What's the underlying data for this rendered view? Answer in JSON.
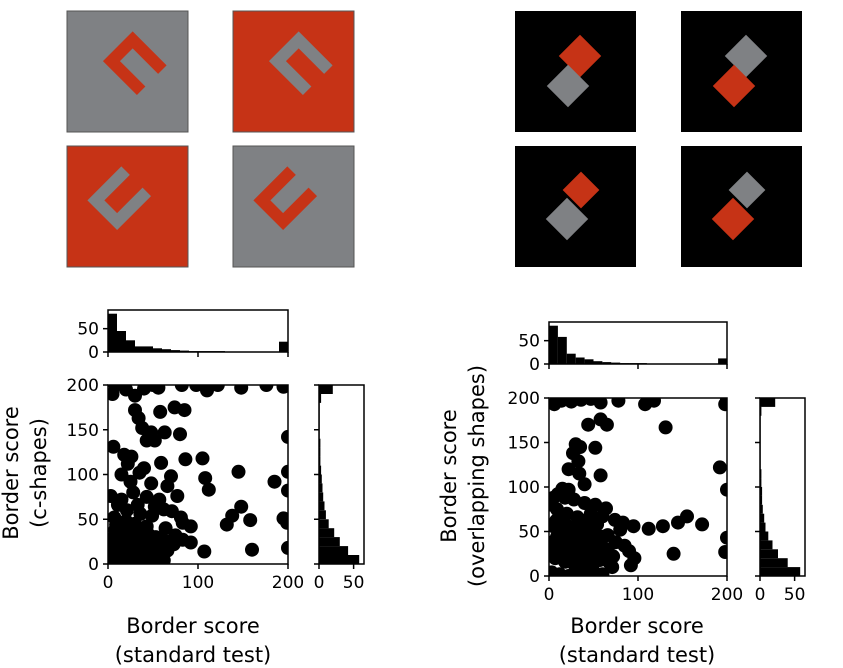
{
  "colors": {
    "red": "#c63316",
    "gray": "#7f8184",
    "black": "#000000",
    "white": "#ffffff"
  },
  "stimuli": {
    "c_shapes": [
      {
        "background": "gray",
        "shape": "red",
        "orientation": "facing-down"
      },
      {
        "background": "red",
        "shape": "gray",
        "orientation": "facing-down"
      },
      {
        "background": "red",
        "shape": "gray",
        "orientation": "facing-up"
      },
      {
        "background": "gray",
        "shape": "red",
        "orientation": "facing-up"
      }
    ],
    "overlapping_shapes": [
      {
        "background": "black",
        "front": "gray",
        "back": "red",
        "front_position": "lower-left"
      },
      {
        "background": "black",
        "front": "red",
        "back": "gray",
        "front_position": "lower-left"
      },
      {
        "background": "black",
        "front": "gray",
        "back": "red",
        "front_position": "lower-left"
      },
      {
        "background": "black",
        "front": "red",
        "back": "gray",
        "front_position": "lower-left"
      }
    ]
  },
  "chart_data": [
    {
      "type": "scatter",
      "title": "",
      "xlabel_line1": "Border score",
      "xlabel_line2": "(standard test)",
      "ylabel_line1": "Border score",
      "ylabel_line2": "(c-shapes)",
      "xlim": [
        0,
        200
      ],
      "ylim": [
        0,
        200
      ],
      "xticks": [
        "0",
        "100",
        "200"
      ],
      "yticks": [
        "0",
        "50",
        "100",
        "150",
        "200"
      ],
      "marginal_x": {
        "type": "bar",
        "yticks": [
          "0",
          "50"
        ],
        "ylim": [
          0,
          90
        ],
        "bin_width": 10,
        "counts": [
          82,
          45,
          25,
          12,
          12,
          8,
          6,
          4,
          3,
          2,
          2,
          2,
          2,
          1,
          1,
          1,
          1,
          1,
          0,
          22
        ]
      },
      "marginal_y": {
        "type": "bar",
        "xticks": [
          "0",
          "50"
        ],
        "xlim": [
          0,
          65
        ],
        "bin_width": 10,
        "counts": [
          58,
          42,
          30,
          22,
          14,
          10,
          8,
          6,
          5,
          4,
          3,
          2,
          2,
          2,
          1,
          1,
          1,
          1,
          3,
          20
        ]
      },
      "points": [
        [
          5,
          190
        ],
        [
          8,
          200
        ],
        [
          20,
          195
        ],
        [
          30,
          188
        ],
        [
          40,
          196
        ],
        [
          50,
          200
        ],
        [
          56,
          197
        ],
        [
          82,
          200
        ],
        [
          98,
          200
        ],
        [
          110,
          194
        ],
        [
          122,
          200
        ],
        [
          148,
          197
        ],
        [
          176,
          200
        ],
        [
          200,
          200
        ],
        [
          195,
          198
        ],
        [
          30,
          172
        ],
        [
          34,
          163
        ],
        [
          58,
          170
        ],
        [
          74,
          175
        ],
        [
          85,
          172
        ],
        [
          38,
          152
        ],
        [
          48,
          147
        ],
        [
          63,
          147
        ],
        [
          80,
          145
        ],
        [
          200,
          142
        ],
        [
          43,
          138
        ],
        [
          52,
          138
        ],
        [
          6,
          131
        ],
        [
          18,
          122
        ],
        [
          26,
          120
        ],
        [
          22,
          112
        ],
        [
          40,
          107
        ],
        [
          59,
          113
        ],
        [
          86,
          117
        ],
        [
          105,
          118
        ],
        [
          15,
          100
        ],
        [
          35,
          102
        ],
        [
          70,
          98
        ],
        [
          108,
          96
        ],
        [
          145,
          103
        ],
        [
          200,
          103
        ],
        [
          25,
          92
        ],
        [
          48,
          90
        ],
        [
          66,
          87
        ],
        [
          112,
          83
        ],
        [
          185,
          92
        ],
        [
          28,
          80
        ],
        [
          43,
          75
        ],
        [
          57,
          72
        ],
        [
          77,
          76
        ],
        [
          200,
          82
        ],
        [
          33,
          66
        ],
        [
          52,
          64
        ],
        [
          62,
          61
        ],
        [
          148,
          64
        ],
        [
          3,
          76
        ],
        [
          15,
          72
        ],
        [
          11,
          66
        ],
        [
          21,
          60
        ],
        [
          36,
          56
        ],
        [
          49,
          54
        ],
        [
          71,
          59
        ],
        [
          81,
          52
        ],
        [
          138,
          54
        ],
        [
          195,
          51
        ],
        [
          158,
          49
        ],
        [
          132,
          44
        ],
        [
          199,
          46
        ],
        [
          83,
          46
        ],
        [
          92,
          42
        ],
        [
          64,
          40
        ],
        [
          75,
          32
        ],
        [
          83,
          27
        ],
        [
          92,
          24
        ],
        [
          107,
          14
        ],
        [
          160,
          16
        ],
        [
          200,
          18
        ],
        [
          7,
          52
        ],
        [
          20,
          48
        ],
        [
          30,
          45
        ],
        [
          43,
          42
        ],
        [
          8,
          38
        ],
        [
          17,
          34
        ],
        [
          27,
          30
        ],
        [
          37,
          26
        ],
        [
          48,
          22
        ],
        [
          57,
          18
        ],
        [
          4,
          28
        ],
        [
          12,
          24
        ],
        [
          22,
          20
        ],
        [
          32,
          16
        ],
        [
          42,
          12
        ],
        [
          52,
          8
        ],
        [
          62,
          4
        ],
        [
          5,
          14
        ],
        [
          14,
          10
        ],
        [
          24,
          6
        ],
        [
          34,
          2
        ],
        [
          3,
          4
        ],
        [
          10,
          2
        ],
        [
          18,
          0
        ],
        [
          28,
          0
        ],
        [
          40,
          0
        ],
        [
          50,
          0
        ],
        [
          9,
          44
        ],
        [
          15,
          42
        ],
        [
          25,
          38
        ],
        [
          35,
          36
        ],
        [
          45,
          33
        ],
        [
          53,
          30
        ],
        [
          60,
          28
        ],
        [
          68,
          25
        ],
        [
          73,
          22
        ],
        [
          66,
          15
        ],
        [
          58,
          10
        ],
        [
          46,
          5
        ],
        [
          7,
          20
        ],
        [
          19,
          15
        ],
        [
          30,
          10
        ]
      ]
    },
    {
      "type": "scatter",
      "title": "",
      "xlabel_line1": "Border score",
      "xlabel_line2": "(standard test)",
      "ylabel_line1": "Border score",
      "ylabel_line2": "(overlapping shapes)",
      "xlim": [
        0,
        200
      ],
      "ylim": [
        0,
        200
      ],
      "xticks": [
        "0",
        "100",
        "200"
      ],
      "yticks": [
        "0",
        "50",
        "100",
        "150",
        "200"
      ],
      "marginal_x": {
        "type": "bar",
        "yticks": [
          "0",
          "50"
        ],
        "ylim": [
          0,
          90
        ],
        "bin_width": 10,
        "counts": [
          82,
          58,
          22,
          14,
          10,
          6,
          4,
          3,
          2,
          2,
          2,
          1,
          1,
          1,
          1,
          1,
          1,
          1,
          0,
          12
        ]
      },
      "marginal_y": {
        "type": "bar",
        "xticks": [
          "0",
          "50"
        ],
        "xlim": [
          0,
          65
        ],
        "bin_width": 10,
        "counts": [
          58,
          40,
          26,
          18,
          12,
          8,
          6,
          4,
          3,
          3,
          2,
          2,
          1,
          1,
          1,
          1,
          1,
          1,
          2,
          22
        ]
      },
      "points": [
        [
          6,
          193
        ],
        [
          14,
          197
        ],
        [
          25,
          196
        ],
        [
          36,
          198
        ],
        [
          47,
          199
        ],
        [
          58,
          195
        ],
        [
          78,
          197
        ],
        [
          108,
          193
        ],
        [
          118,
          197
        ],
        [
          200,
          198
        ],
        [
          198,
          193
        ],
        [
          44,
          170
        ],
        [
          58,
          176
        ],
        [
          65,
          170
        ],
        [
          131,
          167
        ],
        [
          30,
          148
        ],
        [
          35,
          145
        ],
        [
          27,
          138
        ],
        [
          52,
          144
        ],
        [
          33,
          129
        ],
        [
          22,
          120
        ],
        [
          34,
          115
        ],
        [
          58,
          113
        ],
        [
          40,
          103
        ],
        [
          15,
          98
        ],
        [
          22,
          97
        ],
        [
          10,
          92
        ],
        [
          5,
          88
        ],
        [
          3,
          80
        ],
        [
          192,
          122
        ],
        [
          200,
          97
        ],
        [
          18,
          88
        ],
        [
          28,
          86
        ],
        [
          40,
          82
        ],
        [
          52,
          80
        ],
        [
          47,
          70
        ],
        [
          60,
          67
        ],
        [
          74,
          63
        ],
        [
          64,
          76
        ],
        [
          83,
          60
        ],
        [
          95,
          56
        ],
        [
          112,
          53
        ],
        [
          128,
          56
        ],
        [
          145,
          60
        ],
        [
          155,
          67
        ],
        [
          172,
          58
        ],
        [
          200,
          43
        ],
        [
          198,
          27
        ],
        [
          140,
          25
        ],
        [
          80,
          52
        ],
        [
          66,
          46
        ],
        [
          75,
          38
        ],
        [
          85,
          34
        ],
        [
          90,
          28
        ],
        [
          96,
          20
        ],
        [
          68,
          15
        ],
        [
          92,
          12
        ],
        [
          9,
          75
        ],
        [
          20,
          70
        ],
        [
          32,
          66
        ],
        [
          41,
          62
        ],
        [
          54,
          58
        ],
        [
          5,
          56
        ],
        [
          13,
          52
        ],
        [
          24,
          48
        ],
        [
          35,
          45
        ],
        [
          45,
          42
        ],
        [
          56,
          39
        ],
        [
          4,
          38
        ],
        [
          14,
          34
        ],
        [
          25,
          30
        ],
        [
          36,
          26
        ],
        [
          46,
          22
        ],
        [
          57,
          18
        ],
        [
          66,
          30
        ],
        [
          7,
          20
        ],
        [
          18,
          16
        ],
        [
          29,
          12
        ],
        [
          40,
          8
        ],
        [
          51,
          4
        ],
        [
          60,
          2
        ],
        [
          3,
          4
        ],
        [
          12,
          2
        ],
        [
          22,
          0
        ],
        [
          33,
          0
        ],
        [
          44,
          0
        ],
        [
          8,
          62
        ],
        [
          19,
          58
        ],
        [
          30,
          55
        ],
        [
          42,
          52
        ],
        [
          52,
          48
        ],
        [
          61,
          44
        ],
        [
          9,
          44
        ],
        [
          20,
          40
        ],
        [
          31,
          37
        ],
        [
          42,
          33
        ],
        [
          52,
          30
        ],
        [
          62,
          26
        ],
        [
          72,
          22
        ],
        [
          5,
          28
        ],
        [
          16,
          25
        ],
        [
          27,
          21
        ],
        [
          38,
          17
        ],
        [
          49,
          13
        ],
        [
          71,
          10
        ]
      ]
    }
  ]
}
